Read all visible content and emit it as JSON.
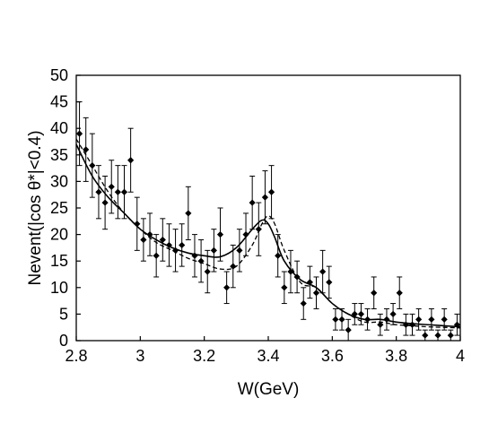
{
  "chart_data": {
    "type": "scatter",
    "title": "",
    "xlabel": "W(GeV)",
    "ylabel": "Nevent(|cos θ*|<0.4)",
    "xlim": [
      2.8,
      4.0
    ],
    "ylim": [
      0,
      50
    ],
    "xticks": [
      "2.8",
      "3",
      "3.2",
      "3.4",
      "3.6",
      "3.8",
      "4"
    ],
    "yticks": [
      "0",
      "5",
      "10",
      "15",
      "20",
      "25",
      "30",
      "35",
      "40",
      "45",
      "50"
    ],
    "grid": false,
    "legend": "none",
    "series": [
      {
        "kind": "points_with_error_bars",
        "marker": "diamond",
        "x": [
          2.81,
          2.83,
          2.85,
          2.87,
          2.89,
          2.91,
          2.93,
          2.95,
          2.97,
          2.99,
          3.01,
          3.03,
          3.05,
          3.07,
          3.09,
          3.11,
          3.13,
          3.15,
          3.17,
          3.19,
          3.21,
          3.23,
          3.25,
          3.27,
          3.29,
          3.31,
          3.33,
          3.35,
          3.37,
          3.39,
          3.41,
          3.43,
          3.45,
          3.47,
          3.49,
          3.51,
          3.53,
          3.55,
          3.57,
          3.59,
          3.61,
          3.63,
          3.65,
          3.67,
          3.69,
          3.71,
          3.73,
          3.75,
          3.77,
          3.79,
          3.81,
          3.83,
          3.85,
          3.87,
          3.89,
          3.91,
          3.93,
          3.95,
          3.97,
          3.99
        ],
        "y": [
          39,
          36,
          33,
          28,
          26,
          29,
          28,
          28,
          34,
          22,
          19,
          20,
          16,
          19,
          18,
          17,
          18,
          24,
          16,
          15,
          13,
          17,
          20,
          10,
          14,
          17,
          20,
          26,
          21,
          27,
          28,
          16,
          10,
          13,
          12,
          7,
          11,
          9,
          13,
          11,
          4,
          4,
          2,
          5,
          5,
          4,
          9,
          3,
          4,
          5,
          9,
          3,
          3,
          4,
          1,
          4,
          1,
          4,
          1,
          3
        ],
        "err": [
          6,
          6,
          6,
          5,
          5,
          5,
          5,
          5,
          6,
          5,
          4,
          4,
          4,
          4,
          4,
          4,
          4,
          5,
          4,
          4,
          4,
          4,
          5,
          3,
          4,
          4,
          4,
          5,
          5,
          5,
          5,
          4,
          3,
          4,
          3,
          3,
          3,
          3,
          4,
          3,
          2,
          2,
          2,
          2,
          2,
          2,
          3,
          2,
          2,
          2,
          3,
          2,
          2,
          2,
          1,
          2,
          1,
          2,
          1,
          2
        ]
      },
      {
        "kind": "fit_curve",
        "style": "solid",
        "x": [
          2.8,
          2.85,
          2.9,
          2.95,
          3.0,
          3.05,
          3.1,
          3.15,
          3.2,
          3.25,
          3.3,
          3.35,
          3.38,
          3.4,
          3.42,
          3.45,
          3.5,
          3.55,
          3.6,
          3.65,
          3.7,
          3.75,
          3.8,
          3.85,
          3.9,
          3.95,
          4.0
        ],
        "y": [
          37,
          31,
          27,
          24,
          21,
          19,
          17.5,
          16.5,
          16,
          15.8,
          17.5,
          21,
          22.7,
          22,
          19.5,
          15,
          11.5,
          10,
          7,
          5,
          4,
          4,
          3.5,
          3.2,
          3,
          2.8,
          2.6
        ]
      },
      {
        "kind": "fit_curve",
        "style": "dashed",
        "x": [
          2.8,
          2.85,
          2.9,
          2.95,
          3.0,
          3.05,
          3.1,
          3.15,
          3.2,
          3.25,
          3.3,
          3.35,
          3.38,
          3.4,
          3.42,
          3.45,
          3.5,
          3.55,
          3.6,
          3.65,
          3.7,
          3.75,
          3.8,
          3.85,
          3.9,
          3.95,
          4.0
        ],
        "y": [
          38,
          33,
          28,
          24,
          21,
          18.5,
          17,
          15.5,
          14.5,
          13.5,
          14,
          18,
          22,
          23.5,
          22,
          17,
          11,
          10,
          7,
          5,
          3.5,
          3.5,
          3,
          2.8,
          2.6,
          2.5,
          2.4
        ]
      }
    ]
  }
}
